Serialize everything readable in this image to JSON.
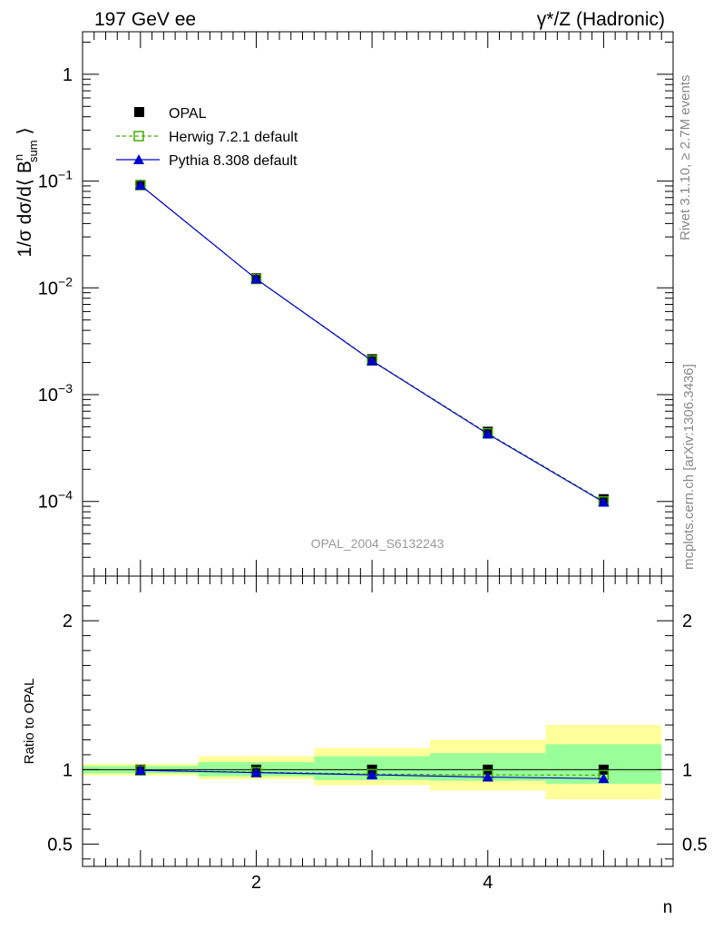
{
  "header": {
    "left_title": "197 GeV ee",
    "right_title": "γ*/Z (Hadronic)"
  },
  "side_labels": {
    "rivet": "Rivet 3.1.10, ≥ 2.7M events",
    "mcplots": "mcplots.cern.ch [arXiv:1306.3436]"
  },
  "watermark": "OPAL_2004_S6132243",
  "colors": {
    "opal": "#000000",
    "herwig": "#44aa00",
    "pythia": "#0000cc",
    "band_inner": "#99ff99",
    "band_outer": "#ffff99"
  },
  "chart_data": [
    {
      "type": "line",
      "panel": "main",
      "ylabel_parts": [
        "1/σ dσ/d⟨ B",
        "n",
        "sum",
        " ⟩"
      ],
      "yscale": "log",
      "ylim": [
        2e-05,
        2.5
      ],
      "xlim": [
        0.5,
        5.6
      ],
      "y_tick_labels": [
        {
          "value": 1,
          "label": "1"
        },
        {
          "value": 0.1,
          "base": "10",
          "exp": "−1"
        },
        {
          "value": 0.01,
          "base": "10",
          "exp": "−2"
        },
        {
          "value": 0.001,
          "base": "10",
          "exp": "−3"
        },
        {
          "value": 0.0001,
          "base": "10",
          "exp": "−4"
        }
      ],
      "legend_position": "top-left",
      "x": [
        1,
        2,
        3,
        4,
        5
      ],
      "series": [
        {
          "name": "OPAL",
          "values": [
            0.092,
            0.0123,
            0.00215,
            0.00045,
            0.000105
          ]
        },
        {
          "name": "Herwig 7.2.1 default",
          "values": [
            0.0915,
            0.0121,
            0.00209,
            0.000435,
            0.0001
          ]
        },
        {
          "name": "Pythia 8.308 default",
          "values": [
            0.0915,
            0.0121,
            0.00207,
            0.000428,
            9.85e-05
          ]
        }
      ]
    },
    {
      "type": "line",
      "panel": "ratio",
      "ylabel": "Ratio to OPAL",
      "xlabel": "n",
      "ylim": [
        0.35,
        2.3
      ],
      "xlim": [
        0.5,
        5.6
      ],
      "x_ticks": [
        2,
        4
      ],
      "y_ticks": [
        0.5,
        1,
        2
      ],
      "y_tick_labels": [
        "0.5",
        "1",
        "2"
      ],
      "x": [
        1,
        2,
        3,
        4,
        5
      ],
      "bins": [
        [
          0.5,
          1.5
        ],
        [
          1.5,
          2.5
        ],
        [
          2.5,
          3.5
        ],
        [
          3.5,
          4.5
        ],
        [
          4.5,
          5.5
        ]
      ],
      "band_inner": [
        [
          0.975,
          1.025
        ],
        [
          0.955,
          1.05
        ],
        [
          0.93,
          1.09
        ],
        [
          0.925,
          1.11
        ],
        [
          0.905,
          1.17
        ]
      ],
      "band_outer": [
        [
          0.96,
          1.04
        ],
        [
          0.935,
          1.09
        ],
        [
          0.895,
          1.145
        ],
        [
          0.86,
          1.2
        ],
        [
          0.8,
          1.3
        ]
      ],
      "series": [
        {
          "name": "Herwig 7.2.1 default",
          "values": [
            0.995,
            0.983,
            0.97,
            0.965,
            0.963
          ]
        },
        {
          "name": "Pythia 8.308 default",
          "values": [
            0.995,
            0.98,
            0.965,
            0.95,
            0.94
          ]
        }
      ]
    }
  ]
}
